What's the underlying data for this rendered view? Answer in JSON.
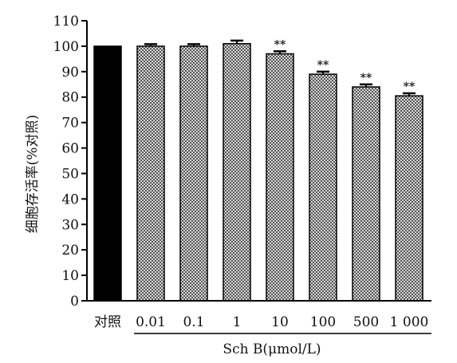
{
  "chart_data": {
    "type": "bar",
    "categories": [
      "对照",
      "0.01",
      "0.1",
      "1",
      "10",
      "100",
      "500",
      "1 000"
    ],
    "values": [
      100,
      100,
      100,
      101,
      97,
      89,
      84,
      80.5
    ],
    "errors": [
      0,
      0.8,
      0.8,
      1.2,
      1.0,
      1.0,
      1.0,
      1.0
    ],
    "significance": [
      "",
      "",
      "",
      "",
      "**",
      "**",
      "**",
      "**"
    ],
    "bar_styles": [
      "solid",
      "hatched",
      "hatched",
      "hatched",
      "hatched",
      "hatched",
      "hatched",
      "hatched"
    ],
    "ylabel": "细胞存活率(%对照)",
    "xlabel": "Sch B(μmol/L)",
    "ylim": [
      0,
      110
    ],
    "yticks": [
      0,
      10,
      20,
      30,
      40,
      50,
      60,
      70,
      80,
      90,
      100,
      110
    ],
    "grid": false,
    "colors": {
      "control": "#000000",
      "bar_fill": "#b0b0b0",
      "hatch": "#555555",
      "axis": "#000000"
    }
  }
}
